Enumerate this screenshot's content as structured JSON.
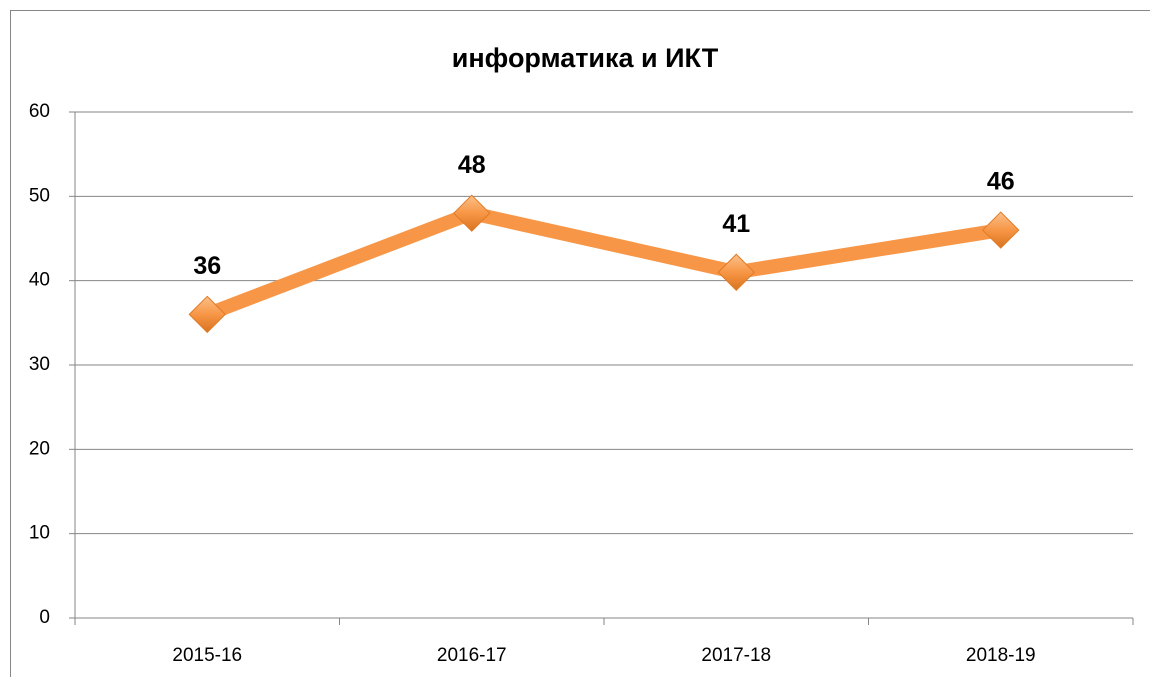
{
  "chart_data": {
    "type": "line",
    "title": "информатика и ИКТ",
    "categories": [
      "2015-16",
      "2016-17",
      "2017-18",
      "2018-19"
    ],
    "values": [
      36,
      48,
      41,
      46
    ],
    "color": "#f79646",
    "ylim": [
      0,
      60
    ],
    "yticks": [
      0,
      10,
      20,
      30,
      40,
      50,
      60
    ],
    "grid": true
  }
}
